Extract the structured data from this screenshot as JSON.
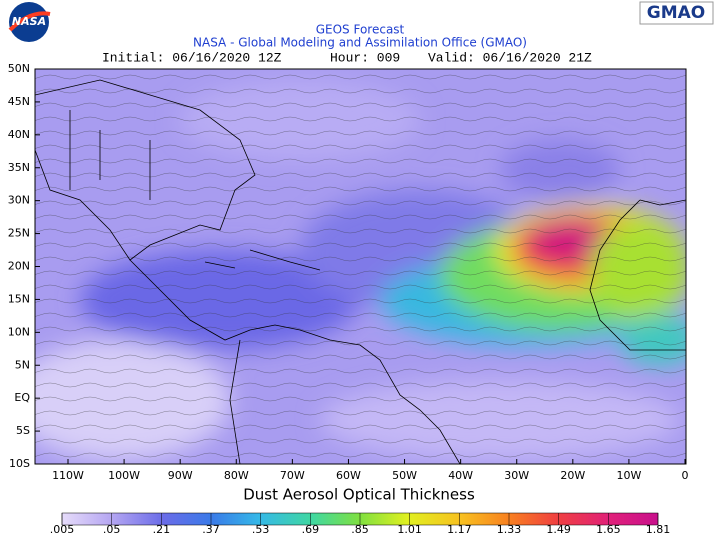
{
  "header": {
    "logo_left": "NASA",
    "logo_right": "GMAO",
    "title": "GEOS Forecast",
    "subtitle": "NASA - Global Modeling and Assimilation Office (GMAO)",
    "info": {
      "initial": "Initial: 06/16/2020 12Z",
      "hour": "Hour: 009",
      "valid": "Valid: 06/16/2020 21Z"
    }
  },
  "map": {
    "lat_labels": [
      "50N",
      "45N",
      "40N",
      "35N",
      "30N",
      "25N",
      "20N",
      "15N",
      "10N",
      "5N",
      "EQ",
      "5S",
      "10S"
    ],
    "lon_labels": [
      "110W",
      "100W",
      "90W",
      "80W",
      "70W",
      "60W",
      "50W",
      "40W",
      "30W",
      "20W",
      "10W",
      "0"
    ]
  },
  "legend": {
    "title": "Dust Aerosol Optical Thickness",
    "ticks": [
      ".005",
      ".05",
      ".21",
      ".37",
      ".53",
      ".69",
      ".85",
      "1.01",
      "1.17",
      "1.33",
      "1.49",
      "1.65",
      "1.81"
    ]
  }
}
